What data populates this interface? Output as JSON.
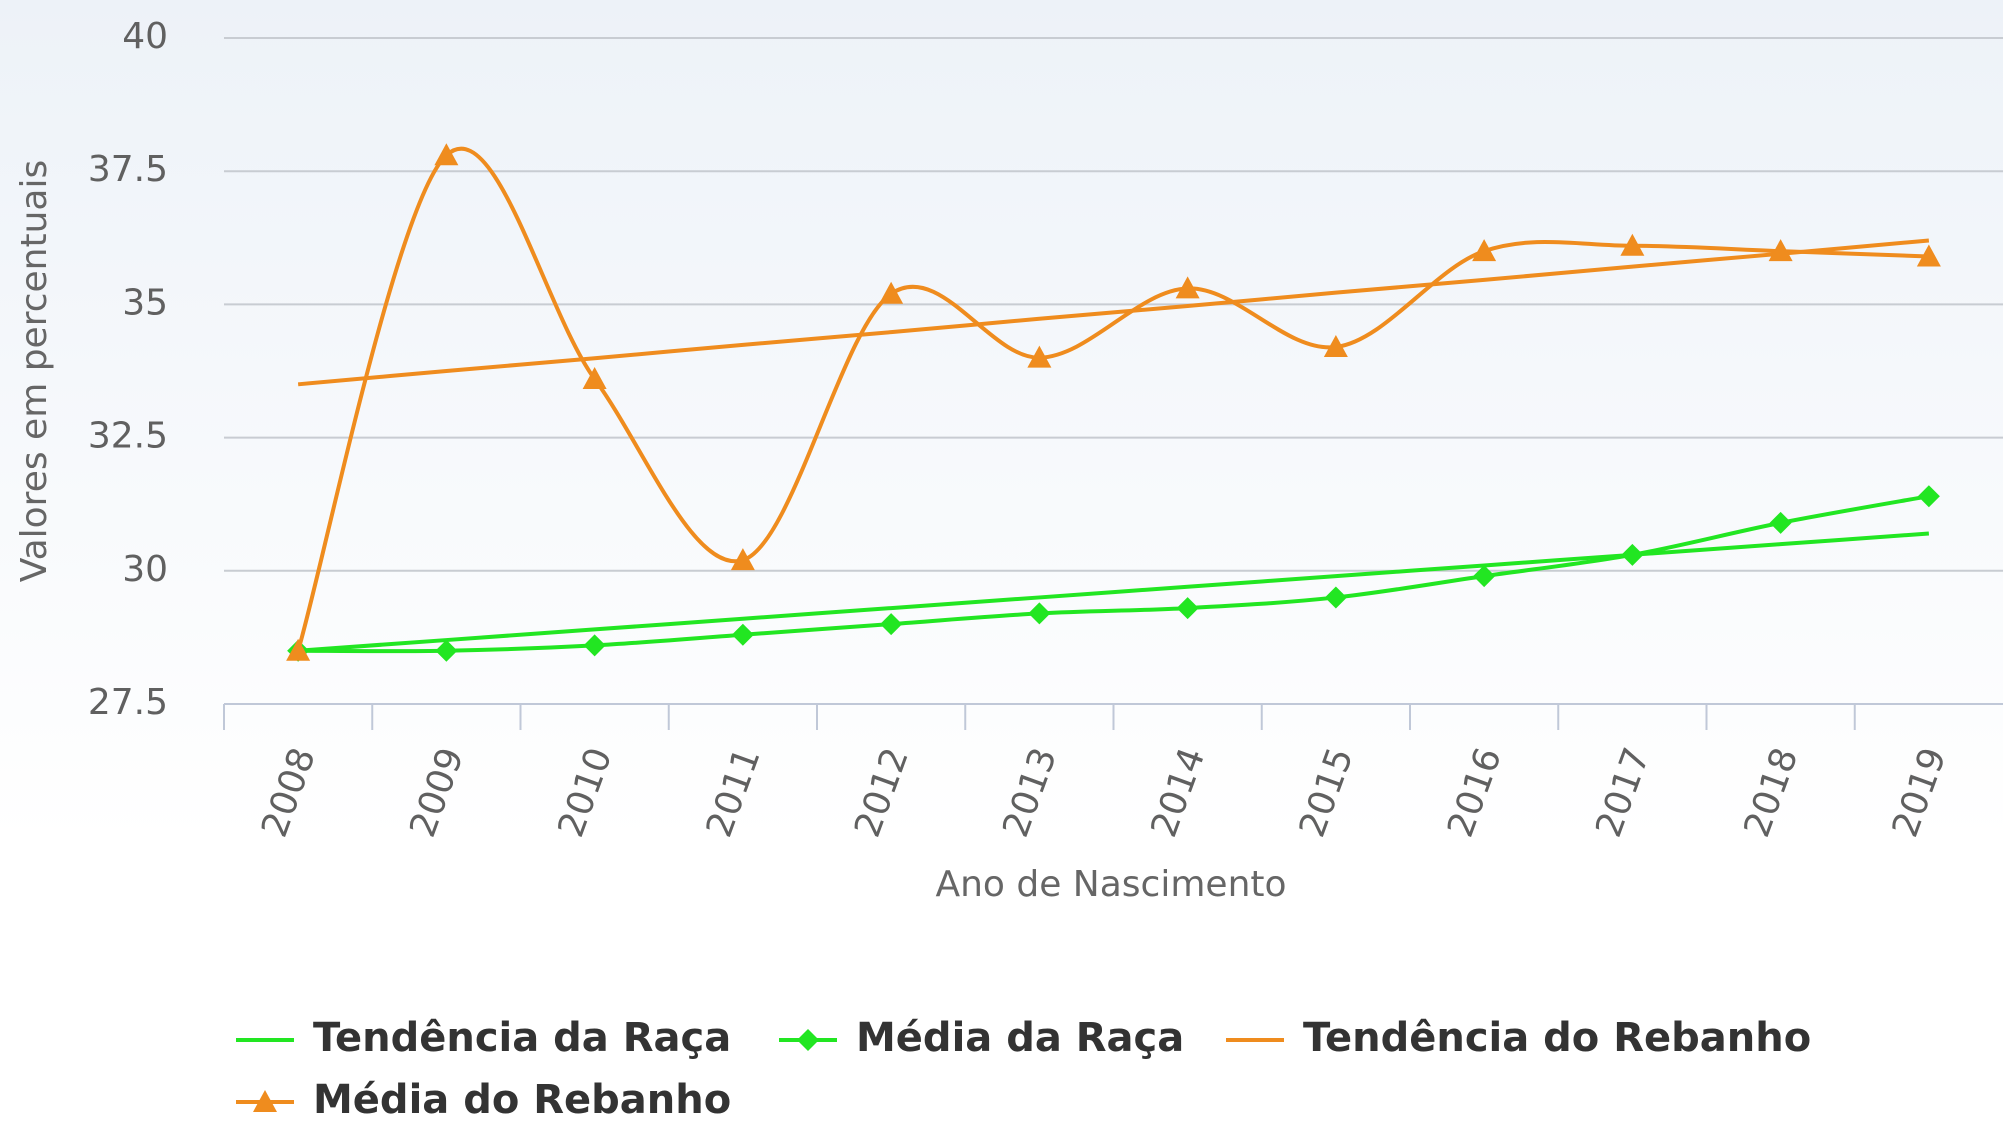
{
  "chart_data": {
    "type": "line",
    "categories": [
      "2008",
      "2009",
      "2010",
      "2011",
      "2012",
      "2013",
      "2014",
      "2015",
      "2016",
      "2017",
      "2018",
      "2019"
    ],
    "x_label": "Ano de Nascimento",
    "y_label": "Valores em percentuais",
    "ylim": [
      27.5,
      40
    ],
    "yticks": [
      27.5,
      30,
      32.5,
      35,
      37.5,
      40
    ],
    "grid": true,
    "smooth": true,
    "series": [
      {
        "name": "Tendência da Raça",
        "color": "#22e622",
        "marker": "none",
        "values": [
          28.5,
          28.7,
          28.9,
          29.1,
          29.3,
          29.5,
          29.7,
          29.9,
          30.1,
          30.3,
          30.5,
          30.7
        ]
      },
      {
        "name": "Média da Raça",
        "color": "#22e622",
        "marker": "diamond",
        "values": [
          28.5,
          28.5,
          28.6,
          28.8,
          29.0,
          29.2,
          29.3,
          29.5,
          29.9,
          30.3,
          30.9,
          31.4
        ]
      },
      {
        "name": "Tendência do Rebanho",
        "color": "#ef8c1e",
        "marker": "none",
        "values": [
          33.5,
          33.75,
          33.99,
          34.24,
          34.48,
          34.73,
          34.97,
          35.22,
          35.46,
          35.71,
          35.95,
          36.2
        ]
      },
      {
        "name": "Média do Rebanho",
        "color": "#ef8c1e",
        "marker": "triangle",
        "values": [
          28.5,
          37.8,
          33.6,
          30.2,
          35.2,
          34.0,
          35.3,
          34.2,
          36.0,
          36.1,
          36.0,
          35.9
        ]
      }
    ]
  }
}
